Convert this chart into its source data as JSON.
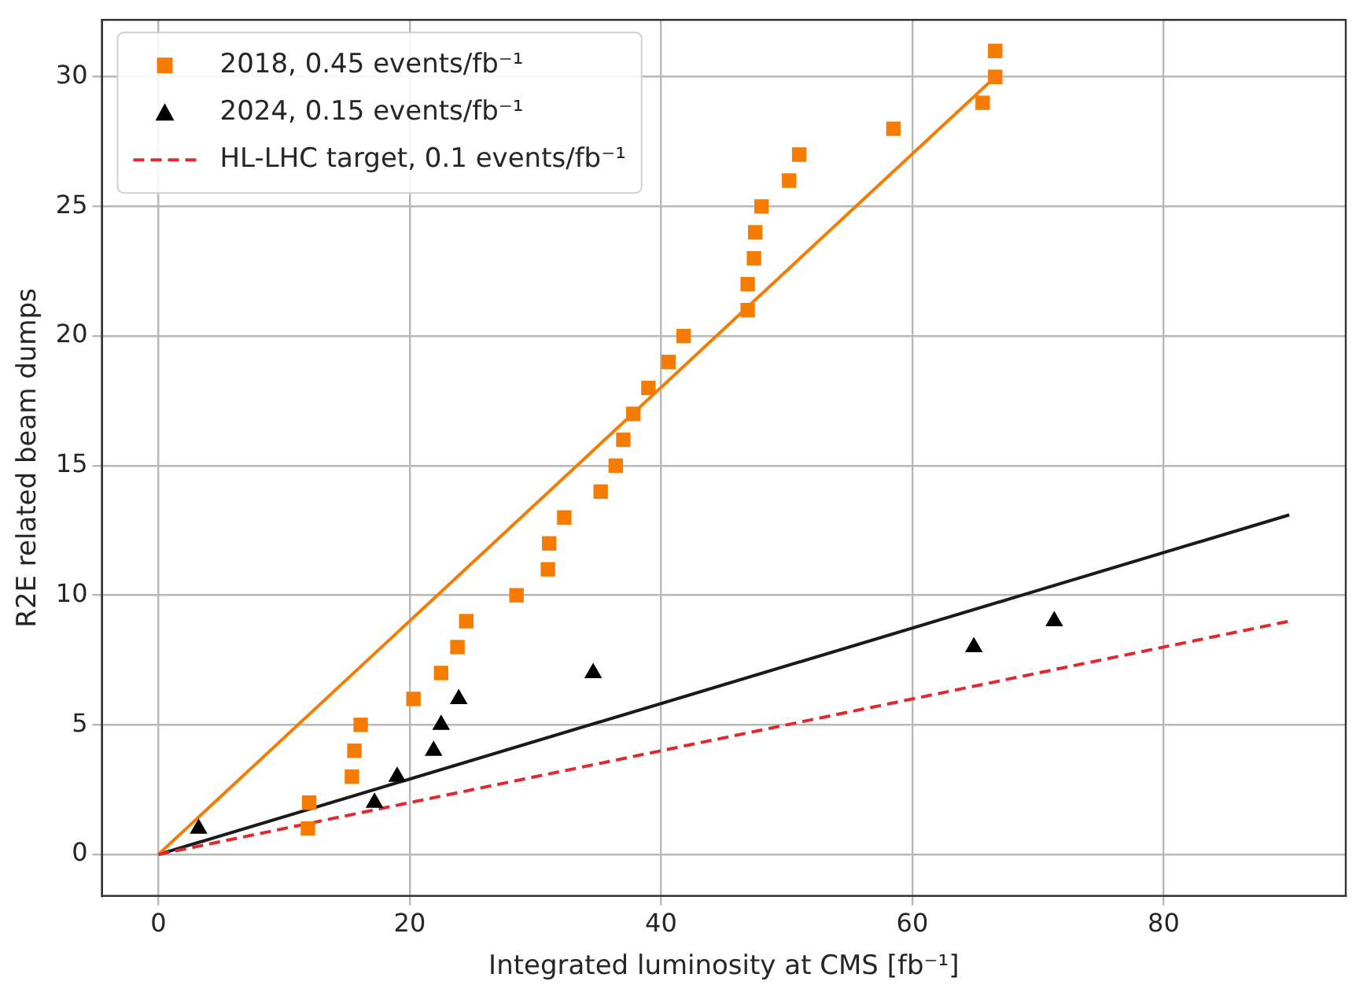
{
  "chart_data": {
    "type": "scatter",
    "xlabel": "Integrated luminosity at CMS [fb⁻¹]",
    "ylabel": "R2E related beam dumps",
    "xlim": [
      -4.5,
      94.5
    ],
    "ylim": [
      -1.6,
      32.2
    ],
    "xticks": [
      0,
      20,
      40,
      60,
      80
    ],
    "yticks": [
      0,
      5,
      10,
      15,
      20,
      25,
      30
    ],
    "grid": true,
    "legend": "top left",
    "series": [
      {
        "name": "2018, 0.45 events/fb⁻¹",
        "type": "scatter",
        "marker": "square",
        "color": "#f57c00",
        "x": [
          11.9,
          12.0,
          15.4,
          15.6,
          16.1,
          20.3,
          22.5,
          23.8,
          24.5,
          28.5,
          31.0,
          31.1,
          32.3,
          35.2,
          36.4,
          37.0,
          37.8,
          39.0,
          40.6,
          41.8,
          46.9,
          46.9,
          47.4,
          47.5,
          48.0,
          50.2,
          51.0,
          58.5,
          65.6,
          66.6,
          66.6
        ],
        "values": [
          1,
          2,
          3,
          4,
          5,
          6,
          7,
          8,
          9,
          10,
          11,
          12,
          13,
          14,
          15,
          16,
          17,
          18,
          19,
          20,
          21,
          22,
          23,
          24,
          25,
          26,
          27,
          28,
          29,
          30,
          31
        ]
      },
      {
        "name": "2024, 0.15 events/fb⁻¹",
        "type": "scatter",
        "marker": "triangle",
        "color": "#000000",
        "x": [
          3.2,
          17.2,
          19.0,
          21.9,
          22.5,
          23.9,
          34.6,
          64.9,
          71.3
        ],
        "values": [
          1,
          2,
          3,
          4,
          5,
          6,
          7,
          8,
          9
        ]
      },
      {
        "name": "HL-LHC target, 0.1 events/fb⁻¹",
        "type": "line",
        "marker": "none",
        "line_style": "dashed",
        "color": "#e0282e",
        "x": [
          0,
          90
        ],
        "values": [
          0,
          9
        ]
      },
      {
        "type": "line",
        "marker": "none",
        "line_style": "solid",
        "color": "#f57c00",
        "x": [
          0,
          66.6
        ],
        "values": [
          0,
          30
        ]
      },
      {
        "type": "line",
        "marker": "none",
        "line_style": "solid",
        "color": "#1a1a1a",
        "x": [
          0,
          90
        ],
        "values": [
          0,
          13.1
        ]
      }
    ]
  }
}
